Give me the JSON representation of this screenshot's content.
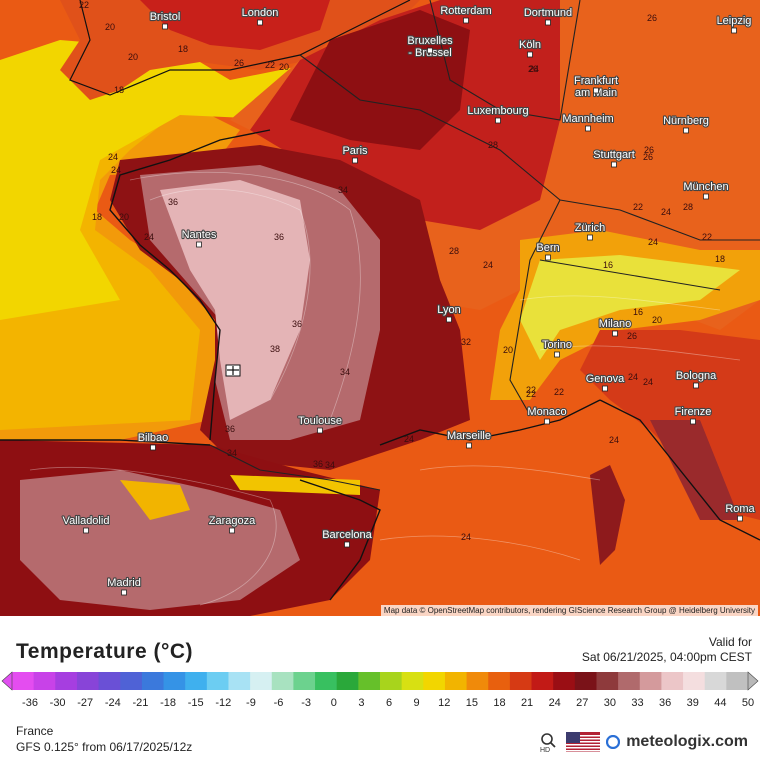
{
  "legend": {
    "title": "Temperature (°C)",
    "valid_label": "Valid for",
    "valid_time": "Sat 06/21/2025, 04:00pm CEST",
    "scale_ticks": [
      "-36",
      "-30",
      "-27",
      "-24",
      "-21",
      "-18",
      "-15",
      "-12",
      "-9",
      "-6",
      "-3",
      "0",
      "3",
      "6",
      "9",
      "12",
      "15",
      "18",
      "21",
      "24",
      "27",
      "30",
      "33",
      "36",
      "39",
      "44",
      "50"
    ]
  },
  "footer": {
    "region": "France",
    "model": "GFS 0.125° from  06/17/2025/12z",
    "brand": "meteologix.com",
    "hd_label": "HD"
  },
  "map": {
    "attribution": "Map data © OpenStreetMap contributors, rendering GIScience Research Group @ Heidelberg University",
    "cities": [
      "Bristol",
      "London",
      "Rotterdam",
      "Dortmund",
      "Leipzig",
      "Bruxelles - Brussel",
      "Köln",
      "Frankfurt am Main",
      "Luxembourg",
      "Mannheim",
      "Nürnberg",
      "Paris",
      "Stuttgart",
      "München",
      "Nantes",
      "Zürich",
      "Bern",
      "Lyon",
      "Milano",
      "Torino",
      "Genova",
      "Bologna",
      "Monaco",
      "Toulouse",
      "Marseille",
      "Firenze",
      "Bilbao",
      "Valladolid",
      "Zaragoza",
      "Barcelona",
      "Madrid",
      "Roma"
    ],
    "iso_labels": [
      "22",
      "20",
      "20",
      "18",
      "18",
      "24",
      "24",
      "18",
      "20",
      "24",
      "26",
      "22",
      "20",
      "36",
      "36",
      "36",
      "34",
      "38",
      "36",
      "34",
      "36",
      "28",
      "26",
      "26",
      "28",
      "22",
      "24",
      "24",
      "22",
      "18",
      "16",
      "16",
      "20",
      "20",
      "22",
      "24",
      "24",
      "24",
      "22",
      "24",
      "26",
      "34",
      "32",
      "24",
      "28",
      "24",
      "26",
      "24",
      "26",
      "22",
      "34"
    ]
  },
  "colors": {
    "yellow": "#f2d600",
    "orange": "#f07a0a",
    "deep_orange": "#e54d12",
    "red": "#c8201a",
    "dark_red": "#8e0f12",
    "rose": "#b56a6d",
    "pink": "#e4b4b6"
  }
}
